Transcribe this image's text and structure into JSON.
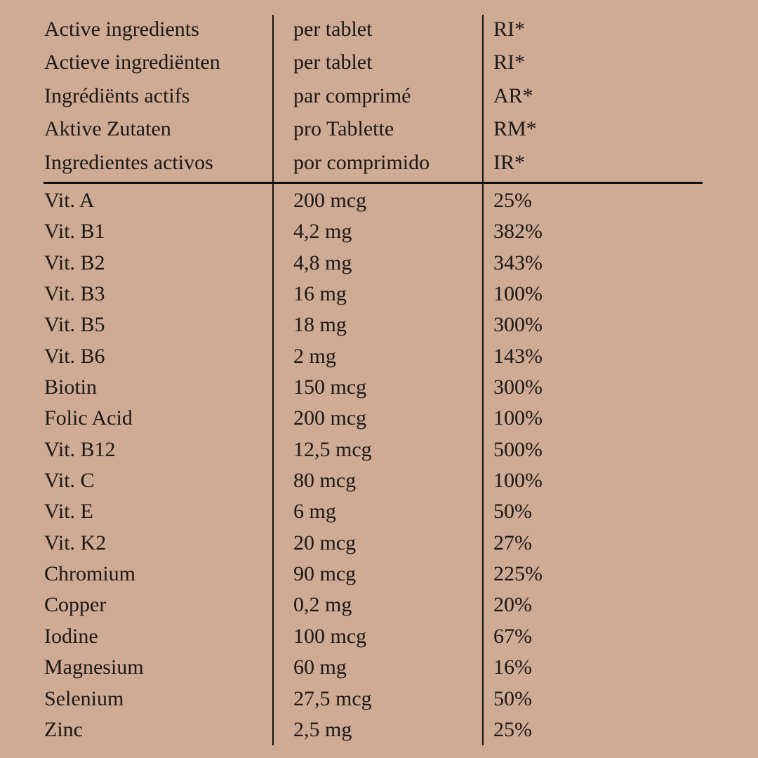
{
  "colors": {
    "background": "#cdab95",
    "text": "#1d1712",
    "rule": "#16110d"
  },
  "table": {
    "header_rows": [
      {
        "ingredients": "Active ingredients",
        "per_unit": "per tablet",
        "ri": "RI*"
      },
      {
        "ingredients": "Actieve ingrediënten",
        "per_unit": "per tablet",
        "ri": "RI*"
      },
      {
        "ingredients": "Ingrédiënts actifs",
        "per_unit": "par comprimé",
        "ri": "AR*"
      },
      {
        "ingredients": "Aktive Zutaten",
        "per_unit": "pro Tablette",
        "ri": "RM*"
      },
      {
        "ingredients": "Ingredientes activos",
        "per_unit": "por comprimido",
        "ri": "IR*"
      }
    ],
    "rows": [
      {
        "name": "Vit. A",
        "amount": "200 mcg",
        "ri": "25%"
      },
      {
        "name": "Vit. B1",
        "amount": "4,2 mg",
        "ri": "382%"
      },
      {
        "name": "Vit. B2",
        "amount": "4,8 mg",
        "ri": "343%"
      },
      {
        "name": "Vit. B3",
        "amount": "16 mg",
        "ri": "100%"
      },
      {
        "name": "Vit. B5",
        "amount": "18 mg",
        "ri": "300%"
      },
      {
        "name": "Vit. B6",
        "amount": "2 mg",
        "ri": "143%"
      },
      {
        "name": "Biotin",
        "amount": "150 mcg",
        "ri": "300%"
      },
      {
        "name": "Folic Acid",
        "amount": "200 mcg",
        "ri": "100%"
      },
      {
        "name": "Vit. B12",
        "amount": "12,5 mcg",
        "ri": "500%"
      },
      {
        "name": "Vit. C",
        "amount": "80 mcg",
        "ri": "100%"
      },
      {
        "name": "Vit. E",
        "amount": "6 mg",
        "ri": "50%"
      },
      {
        "name": "Vit. K2",
        "amount": "20 mcg",
        "ri": "27%"
      },
      {
        "name": "Chromium",
        "amount": "90 mcg",
        "ri": "225%"
      },
      {
        "name": "Copper",
        "amount": "0,2 mg",
        "ri": "20%"
      },
      {
        "name": "Iodine",
        "amount": "100 mcg",
        "ri": "67%"
      },
      {
        "name": "Magnesium",
        "amount": "60 mg",
        "ri": "16%"
      },
      {
        "name": "Selenium",
        "amount": "27,5 mcg",
        "ri": "50%"
      },
      {
        "name": "Zinc",
        "amount": "2,5 mg",
        "ri": "25%"
      }
    ]
  }
}
